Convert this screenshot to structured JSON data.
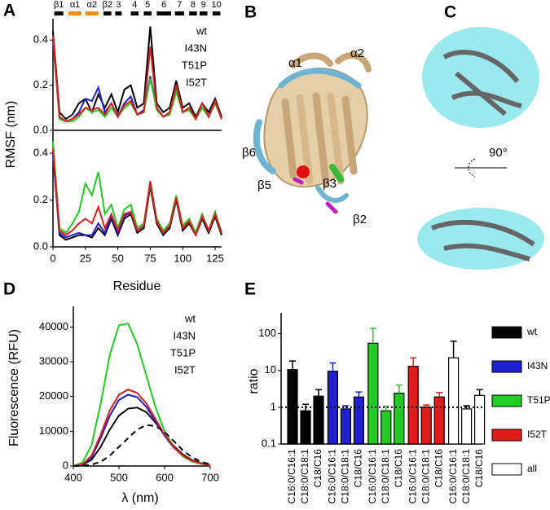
{
  "panels": [
    "A",
    "B",
    "C",
    "D",
    "E"
  ],
  "structure_labels": [
    "α1",
    "α2",
    "β6",
    "β5",
    "β3",
    "β2"
  ],
  "rotation": "90°",
  "chart_data": [
    {
      "type": "line",
      "ylabel": "RMSF (nm)",
      "x": [
        0,
        5,
        10,
        15,
        20,
        25,
        30,
        35,
        40,
        45,
        50,
        55,
        60,
        65,
        70,
        75,
        80,
        85,
        90,
        95,
        100,
        105,
        110,
        115,
        120,
        125,
        130
      ],
      "xlim": [
        0,
        130
      ],
      "ylim": [
        0,
        0.48
      ],
      "yticks": [
        {
          "value": 0,
          "label": "0.0"
        },
        0.2,
        0.4
      ],
      "legend": "top-right",
      "secondary_structure": [
        {
          "label": "β1",
          "start": 1,
          "end": 8,
          "color": "#000000"
        },
        {
          "label": "α1",
          "start": 12,
          "end": 22,
          "color": "#f0901e"
        },
        {
          "label": "α2",
          "start": 25,
          "end": 35,
          "color": "#f0901e"
        },
        {
          "label": "β2",
          "start": 39,
          "end": 45,
          "color": "#000000"
        },
        {
          "label": "3",
          "start": 48,
          "end": 53,
          "color": "#000000"
        },
        {
          "label": "4",
          "start": 60,
          "end": 66,
          "color": "#000000"
        },
        {
          "label": "5",
          "start": 70,
          "end": 76,
          "color": "#000000"
        },
        {
          "label": "6",
          "start": 80,
          "end": 91,
          "color": "#000000"
        },
        {
          "label": "7",
          "start": 94,
          "end": 101,
          "color": "#000000"
        },
        {
          "label": "8",
          "start": 105,
          "end": 111,
          "color": "#000000"
        },
        {
          "label": "9",
          "start": 113,
          "end": 119,
          "color": "#000000"
        },
        {
          "label": "10",
          "start": 123,
          "end": 129,
          "color": "#000000"
        }
      ],
      "series": [
        {
          "name": "wt",
          "color": "#000000",
          "values": [
            0.44,
            0.08,
            0.05,
            0.07,
            0.12,
            0.14,
            0.08,
            0.16,
            0.1,
            0.16,
            0.08,
            0.18,
            0.2,
            0.1,
            0.12,
            0.46,
            0.12,
            0.08,
            0.1,
            0.22,
            0.1,
            0.12,
            0.06,
            0.12,
            0.08,
            0.14,
            0.06
          ]
        },
        {
          "name": "I43N",
          "color": "#1f1fd0",
          "values": [
            0.4,
            0.06,
            0.04,
            0.05,
            0.08,
            0.14,
            0.13,
            0.19,
            0.08,
            0.12,
            0.06,
            0.12,
            0.15,
            0.07,
            0.09,
            0.24,
            0.1,
            0.06,
            0.08,
            0.18,
            0.08,
            0.1,
            0.05,
            0.12,
            0.06,
            0.13,
            0.05
          ]
        },
        {
          "name": "T51P",
          "color": "#22cc22",
          "values": [
            0.42,
            0.05,
            0.04,
            0.04,
            0.06,
            0.1,
            0.08,
            0.09,
            0.06,
            0.1,
            0.06,
            0.1,
            0.12,
            0.07,
            0.08,
            0.23,
            0.09,
            0.06,
            0.07,
            0.17,
            0.08,
            0.09,
            0.05,
            0.1,
            0.06,
            0.12,
            0.05
          ]
        },
        {
          "name": "I52T",
          "color": "#e01c1c",
          "values": [
            0.42,
            0.06,
            0.04,
            0.05,
            0.07,
            0.1,
            0.09,
            0.1,
            0.07,
            0.12,
            0.06,
            0.11,
            0.13,
            0.07,
            0.08,
            0.37,
            0.1,
            0.06,
            0.08,
            0.2,
            0.08,
            0.1,
            0.05,
            0.12,
            0.06,
            0.13,
            0.05
          ]
        }
      ]
    },
    {
      "type": "line",
      "xlabel": "Residue",
      "x": [
        0,
        5,
        10,
        15,
        20,
        25,
        30,
        35,
        40,
        45,
        50,
        55,
        60,
        65,
        70,
        75,
        80,
        85,
        90,
        95,
        100,
        105,
        110,
        115,
        120,
        125,
        130
      ],
      "xlim": [
        0,
        130
      ],
      "ylim": [
        0,
        0.48
      ],
      "xticks": [
        0,
        25,
        50,
        75,
        100,
        125
      ],
      "yticks": [
        {
          "value": 0,
          "label": "0.0"
        },
        0.2,
        0.4
      ],
      "series": [
        {
          "color": "#000000",
          "values": [
            0.4,
            0.05,
            0.03,
            0.04,
            0.05,
            0.05,
            0.04,
            0.08,
            0.05,
            0.12,
            0.05,
            0.12,
            0.14,
            0.06,
            0.08,
            0.26,
            0.1,
            0.05,
            0.08,
            0.2,
            0.07,
            0.1,
            0.05,
            0.12,
            0.06,
            0.13,
            0.05
          ]
        },
        {
          "color": "#1f1fd0",
          "values": [
            0.4,
            0.06,
            0.04,
            0.05,
            0.06,
            0.05,
            0.05,
            0.1,
            0.06,
            0.13,
            0.06,
            0.13,
            0.15,
            0.07,
            0.09,
            0.28,
            0.11,
            0.06,
            0.09,
            0.21,
            0.08,
            0.11,
            0.05,
            0.13,
            0.07,
            0.14,
            0.06
          ]
        },
        {
          "color": "#22cc22",
          "values": [
            0.45,
            0.08,
            0.06,
            0.1,
            0.15,
            0.27,
            0.22,
            0.32,
            0.14,
            0.18,
            0.08,
            0.16,
            0.18,
            0.08,
            0.1,
            0.27,
            0.12,
            0.07,
            0.1,
            0.22,
            0.09,
            0.12,
            0.06,
            0.14,
            0.07,
            0.15,
            0.06
          ]
        },
        {
          "color": "#e01c1c",
          "values": [
            0.42,
            0.07,
            0.05,
            0.07,
            0.1,
            0.12,
            0.1,
            0.17,
            0.08,
            0.14,
            0.07,
            0.14,
            0.15,
            0.07,
            0.09,
            0.28,
            0.11,
            0.06,
            0.09,
            0.21,
            0.08,
            0.11,
            0.05,
            0.13,
            0.07,
            0.14,
            0.06
          ]
        }
      ]
    },
    {
      "type": "line",
      "ylabel": "Fluorescence (RFU)",
      "xlabel": "λ (nm)",
      "x": [
        400,
        420,
        440,
        460,
        480,
        500,
        520,
        540,
        560,
        580,
        600,
        620,
        640,
        660,
        680,
        700
      ],
      "xlim": [
        400,
        700
      ],
      "ylim": [
        0,
        45000
      ],
      "xticks": [
        400,
        500,
        600,
        700
      ],
      "yticks": [
        0,
        10000,
        20000,
        30000,
        40000
      ],
      "legend": "top-right",
      "series": [
        {
          "name": "wt",
          "color": "#000000",
          "values": [
            0,
            300,
            1800,
            5500,
            10500,
            14500,
            16500,
            16800,
            15500,
            12500,
            9000,
            5800,
            3300,
            1700,
            800,
            300
          ]
        },
        {
          "name": "I43N",
          "color": "#1f1fd0",
          "values": [
            0,
            400,
            2500,
            8000,
            14500,
            19000,
            20500,
            19800,
            17000,
            13000,
            8700,
            5300,
            3000,
            1500,
            700,
            250
          ]
        },
        {
          "name": "T51P",
          "color": "#22cc22",
          "values": [
            0,
            1000,
            6000,
            18000,
            32000,
            40500,
            41000,
            35000,
            26000,
            17000,
            10000,
            5500,
            2800,
            1300,
            600,
            200
          ]
        },
        {
          "name": "I52T",
          "color": "#e01c1c",
          "values": [
            0,
            500,
            3000,
            9000,
            16000,
            20500,
            22000,
            21000,
            18000,
            13500,
            9000,
            5500,
            3000,
            1500,
            700,
            250
          ]
        },
        {
          "color": "#000000",
          "dashed": true,
          "values": [
            0,
            100,
            400,
            1200,
            3000,
            5500,
            8000,
            10500,
            11800,
            11500,
            9800,
            7200,
            4500,
            2500,
            1200,
            500
          ]
        }
      ]
    },
    {
      "type": "bar",
      "ylabel": "ratio",
      "log_scale": true,
      "categories": [
        "C16:0/C16:1",
        "C18:0/C18:1",
        "C18/C16"
      ],
      "ylim": [
        0.1,
        300
      ],
      "yticks": [
        0.1,
        1,
        10,
        100
      ],
      "reference_line": 1,
      "legend": "right",
      "series": [
        {
          "name": "wt",
          "color": "#000000",
          "values": [
            10.5,
            0.8,
            2.0
          ],
          "errors": [
            7.5,
            0.4,
            1.0
          ]
        },
        {
          "name": "I43N",
          "color": "#1f1fd0",
          "values": [
            9.5,
            0.9,
            1.9
          ],
          "errors": [
            6.5,
            0.2,
            0.7
          ]
        },
        {
          "name": "T51P",
          "color": "#22cc22",
          "values": [
            55,
            0.8,
            2.4
          ],
          "errors": [
            85,
            0.25,
            1.6
          ]
        },
        {
          "name": "I52T",
          "color": "#e01c1c",
          "values": [
            13,
            1.0,
            1.9
          ],
          "errors": [
            9,
            0.15,
            0.6
          ]
        },
        {
          "name": "all",
          "color": "#ffffff",
          "values": [
            22,
            0.9,
            2.1
          ],
          "errors": [
            40,
            0.2,
            0.9
          ]
        }
      ]
    }
  ]
}
